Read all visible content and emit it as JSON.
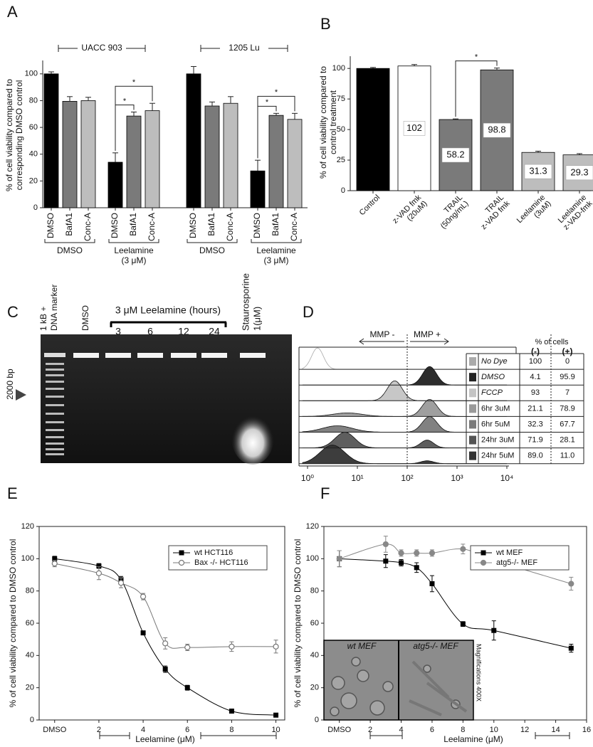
{
  "chart_data": [
    {
      "panel": "A",
      "type": "bar",
      "ylabel": [
        "% of cell viability compared to",
        "corresponding DMSO control"
      ],
      "categories": [
        "DMSO",
        "BafA1",
        "Conc-A",
        "DMSO",
        "BafA1",
        "Conc-A",
        "DMSO",
        "BafA1",
        "Conc-A",
        "DMSO",
        "BafA1",
        "Conc-A"
      ],
      "values": [
        100,
        79.5,
        80,
        34,
        68.5,
        72.5,
        100,
        76,
        78,
        27.5,
        69,
        66
      ],
      "errors": [
        1.5,
        3.5,
        2.5,
        7,
        3,
        5.5,
        5.5,
        3,
        5,
        8,
        1.5,
        4.5
      ],
      "colors": [
        "#000000",
        "#7a7a7a",
        "#bdbdbd",
        "#000000",
        "#7a7a7a",
        "#bdbdbd",
        "#000000",
        "#7a7a7a",
        "#bdbdbd",
        "#000000",
        "#7a7a7a",
        "#bdbdbd"
      ],
      "groups": [
        "UACC 903",
        "1205 Lu"
      ],
      "subgroups": [
        [
          "DMSO"
        ],
        [
          "Leelamine",
          "(3 μM)"
        ],
        [
          "DMSO"
        ],
        [
          "Leelamine",
          "(3 μM)"
        ]
      ],
      "annotations": [
        "*",
        "*",
        "*",
        "*"
      ],
      "ylim": [
        0,
        110
      ],
      "yticks": [
        0,
        20,
        40,
        60,
        80,
        100
      ]
    },
    {
      "panel": "B",
      "type": "bar",
      "ylabel": [
        "% of cell viability compared to",
        "control treatment"
      ],
      "categories": [
        [
          "Control"
        ],
        [
          "z-VAD fmk",
          "(20uM)"
        ],
        [
          "TRAIL",
          "(50ng/mL)"
        ],
        [
          "TRAIL",
          "z-VAD fmk"
        ],
        [
          "Leelamine",
          "(3uM)"
        ],
        [
          "Leelamine",
          "z-VAD-fmk"
        ]
      ],
      "values": [
        100,
        102,
        58.2,
        98.8,
        31.3,
        29.3
      ],
      "value_labels": [
        null,
        "102",
        "58.2",
        "98.8",
        "31.3",
        "29.3"
      ],
      "errors": [
        0.8,
        1.2,
        0.5,
        1.5,
        1,
        1
      ],
      "colors": [
        "#000000",
        "#ffffff",
        "#7a7a7a",
        "#7a7a7a",
        "#bdbdbd",
        "#bdbdbd"
      ],
      "annotations": [
        "*"
      ],
      "ylim": [
        0,
        110
      ],
      "yticks": [
        0,
        25,
        50,
        75,
        100
      ]
    },
    {
      "panel": "E",
      "type": "line",
      "ylabel": [
        "% of cell viability compared to DMSO control"
      ],
      "xlabel": "Leelamine (μM)",
      "x": [
        0,
        2,
        3,
        4,
        5,
        6,
        8,
        10
      ],
      "series": [
        {
          "name": "wt HCT116",
          "color": "#000000",
          "marker": "square",
          "filled": true,
          "values": [
            100,
            95.5,
            87,
            54,
            31.5,
            20,
            5.5,
            3
          ],
          "errors": [
            1.5,
            1.5,
            2,
            1,
            2,
            1.5,
            0.5,
            0.5
          ]
        },
        {
          "name": "Bax -/- HCT116",
          "color": "#777777",
          "marker": "circle",
          "filled": false,
          "values": [
            97,
            91,
            85,
            76.5,
            47.5,
            45,
            45.5,
            45.5
          ],
          "errors": [
            2,
            4,
            3,
            2,
            3.5,
            2,
            3,
            4
          ]
        }
      ],
      "legend": "upper right",
      "xlim": [
        -0.7,
        10.4
      ],
      "xticks": [
        {
          "value": 0,
          "label": "DMSO"
        },
        2,
        4,
        6,
        8,
        10
      ],
      "ylim": [
        0,
        120
      ],
      "yticks": [
        0,
        20,
        40,
        60,
        80,
        100,
        120
      ]
    },
    {
      "panel": "F",
      "type": "line",
      "ylabel": [
        "% of cell viability compared to DMSO control"
      ],
      "xlabel": "Leelamine (μM)",
      "x": [
        0,
        3,
        4,
        5,
        6,
        8,
        10,
        15
      ],
      "series": [
        {
          "name": "wt MEF",
          "color": "#000000",
          "marker": "square",
          "filled": true,
          "values": [
            100,
            98.5,
            97.5,
            94.5,
            84.5,
            59.5,
            55.5,
            44.5
          ],
          "errors": [
            5,
            4,
            2,
            3,
            5,
            1.5,
            6,
            2.5
          ]
        },
        {
          "name": "atg5-/- MEF",
          "color": "#888888",
          "marker": "circle",
          "filled": true,
          "values": [
            100,
            109,
            103.5,
            103.5,
            103.5,
            106,
            99,
            84.5
          ],
          "errors": [
            5,
            5,
            2,
            2,
            2,
            3,
            2,
            4
          ]
        }
      ],
      "legend": "upper right",
      "inset": {
        "left": "wt MEF",
        "right": "atg5-/- MEF",
        "note": "Magnifications 400X"
      },
      "xlim": [
        -1,
        16
      ],
      "xticks": [
        {
          "value": 0,
          "label": "DMSO"
        },
        2,
        4,
        6,
        8,
        10,
        12,
        14,
        16
      ],
      "ylim": [
        0,
        120
      ],
      "yticks": [
        0,
        20,
        40,
        60,
        80,
        100,
        120
      ]
    }
  ],
  "gel": {
    "panel": "C",
    "marker": [
      "1 kB +",
      "DNA marker"
    ],
    "control": "DMSO",
    "treatment": "3 μM Leelamine (hours)",
    "hours": [
      "3",
      "6",
      "12",
      "24"
    ],
    "positive": [
      "Staurosporine",
      "1(μM)"
    ],
    "size": "2000 bp"
  },
  "flow": {
    "panel": "D",
    "gates": [
      "MMP -",
      "MMP +"
    ],
    "header": "% of cells",
    "columns": [
      "(-)",
      "(+)"
    ],
    "xscale": "log",
    "xticks": [
      {
        "value": 1,
        "label": "10⁰"
      },
      {
        "value": 10,
        "label": "10¹"
      },
      {
        "value": 100,
        "label": "10²"
      },
      {
        "value": 1000,
        "label": "10³"
      },
      {
        "value": 10000,
        "label": "10⁴"
      }
    ],
    "rows": [
      {
        "name": "No Dye",
        "minus": "100",
        "plus": "0",
        "color": "#aaaaaa"
      },
      {
        "name": "DMSO",
        "minus": "4.1",
        "plus": "95.9",
        "color": "#222222"
      },
      {
        "name": "FCCP",
        "minus": "93",
        "plus": "7",
        "color": "#c4c4c4"
      },
      {
        "name": "6hr 3uM",
        "minus": "21.1",
        "plus": "78.9",
        "color": "#9a9a9a"
      },
      {
        "name": "6hr 5uM",
        "minus": "32.3",
        "plus": "67.7",
        "color": "#7a7a7a"
      },
      {
        "name": "24hr 3uM",
        "minus": "71.9",
        "plus": "28.1",
        "color": "#555555"
      },
      {
        "name": "24hr 5uM",
        "minus": "89.0",
        "plus": "11.0",
        "color": "#333333"
      }
    ]
  }
}
